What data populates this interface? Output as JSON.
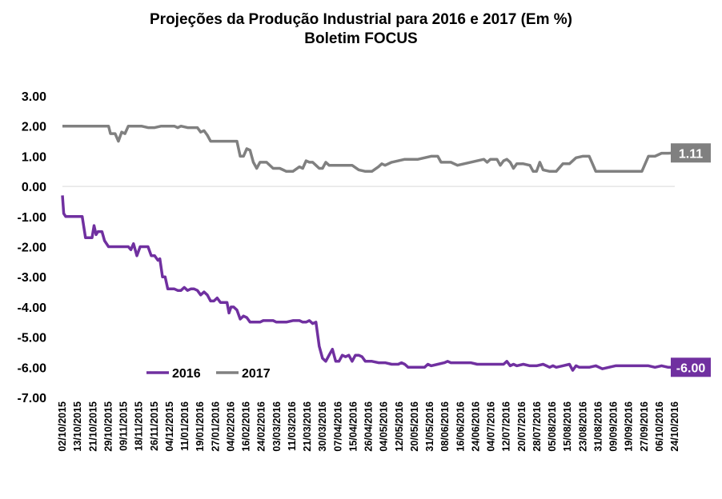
{
  "chart_data": {
    "type": "line",
    "title": "Projeções da Produção Industrial para 2016 e 2017 (Em %)",
    "subtitle": "Boletim FOCUS",
    "ylim": [
      -7,
      3
    ],
    "yticks": [
      "3.00",
      "2.00",
      "1.00",
      "0.00",
      "-1.00",
      "-2.00",
      "-3.00",
      "-4.00",
      "-5.00",
      "-6.00",
      "-7.00"
    ],
    "x_tick_labels": [
      "02/10/2015",
      "13/10/2015",
      "21/10/2015",
      "29/10/2015",
      "09/11/2015",
      "18/11/2015",
      "26/11/2015",
      "04/12/2015",
      "11/01/2016",
      "19/01/2016",
      "27/01/2016",
      "04/02/2016",
      "16/02/2016",
      "24/02/2016",
      "03/03/2016",
      "11/03/2016",
      "21/03/2016",
      "30/03/2016",
      "07/04/2016",
      "15/04/2016",
      "26/04/2016",
      "04/05/2016",
      "12/05/2016",
      "20/05/2016",
      "31/05/2016",
      "08/06/2016",
      "16/06/2016",
      "24/06/2016",
      "04/07/2016",
      "12/07/2016",
      "20/07/2016",
      "28/07/2016",
      "05/08/2016",
      "15/08/2016",
      "23/08/2016",
      "31/08/2016",
      "09/09/2016",
      "19/09/2016",
      "27/09/2016",
      "06/10/2016",
      "24/10/2016"
    ],
    "legend_position": "bottom-left",
    "grid": false,
    "series": [
      {
        "name": "2016",
        "color": "#7030A0",
        "end_label": "-6.00",
        "points": [
          [
            0,
            -0.3
          ],
          [
            0.2,
            -0.9
          ],
          [
            0.5,
            -1.0
          ],
          [
            1,
            -1.0
          ],
          [
            2,
            -1.0
          ],
          [
            3,
            -1.0
          ],
          [
            3.5,
            -1.7
          ],
          [
            4.5,
            -1.7
          ],
          [
            4.8,
            -1.3
          ],
          [
            5.1,
            -1.6
          ],
          [
            5.4,
            -1.5
          ],
          [
            6,
            -1.5
          ],
          [
            6.4,
            -1.8
          ],
          [
            7,
            -2.0
          ],
          [
            8,
            -2.0
          ],
          [
            9,
            -2.0
          ],
          [
            10,
            -2.0
          ],
          [
            10.4,
            -2.1
          ],
          [
            10.8,
            -1.9
          ],
          [
            11.3,
            -2.3
          ],
          [
            11.8,
            -2.0
          ],
          [
            12.5,
            -2.0
          ],
          [
            13,
            -2.0
          ],
          [
            13.5,
            -2.3
          ],
          [
            14,
            -2.3
          ],
          [
            14.5,
            -2.45
          ],
          [
            14.8,
            -2.4
          ],
          [
            15.2,
            -3.0
          ],
          [
            15.6,
            -3.0
          ],
          [
            16,
            -3.4
          ],
          [
            17,
            -3.4
          ],
          [
            17.5,
            -3.45
          ],
          [
            18,
            -3.45
          ],
          [
            18.5,
            -3.35
          ],
          [
            19,
            -3.45
          ],
          [
            19.5,
            -3.4
          ],
          [
            20,
            -3.4
          ],
          [
            20.5,
            -3.45
          ],
          [
            21,
            -3.6
          ],
          [
            21.5,
            -3.5
          ],
          [
            22,
            -3.6
          ],
          [
            22.5,
            -3.8
          ],
          [
            23,
            -3.8
          ],
          [
            23.5,
            -3.7
          ],
          [
            24,
            -3.85
          ],
          [
            25,
            -3.85
          ],
          [
            25.3,
            -4.2
          ],
          [
            25.6,
            -4.0
          ],
          [
            26,
            -4.0
          ],
          [
            26.5,
            -4.1
          ],
          [
            27,
            -4.4
          ],
          [
            27.5,
            -4.3
          ],
          [
            28,
            -4.35
          ],
          [
            28.5,
            -4.5
          ],
          [
            29,
            -4.5
          ],
          [
            29.5,
            -4.5
          ],
          [
            30,
            -4.5
          ],
          [
            30.5,
            -4.45
          ],
          [
            31,
            -4.45
          ],
          [
            32,
            -4.45
          ],
          [
            32.5,
            -4.5
          ],
          [
            33,
            -4.5
          ],
          [
            34,
            -4.5
          ],
          [
            35,
            -4.45
          ],
          [
            36,
            -4.45
          ],
          [
            36.5,
            -4.5
          ],
          [
            37,
            -4.5
          ],
          [
            37.5,
            -4.45
          ],
          [
            38,
            -4.55
          ],
          [
            38.5,
            -4.5
          ],
          [
            39,
            -5.3
          ],
          [
            39.5,
            -5.7
          ],
          [
            40,
            -5.8
          ],
          [
            40.5,
            -5.6
          ],
          [
            41,
            -5.4
          ],
          [
            41.5,
            -5.8
          ],
          [
            42,
            -5.8
          ],
          [
            42.5,
            -5.6
          ],
          [
            43,
            -5.65
          ],
          [
            43.5,
            -5.6
          ],
          [
            44,
            -5.8
          ],
          [
            44.5,
            -5.6
          ],
          [
            45,
            -5.6
          ],
          [
            45.5,
            -5.65
          ],
          [
            46,
            -5.8
          ],
          [
            47,
            -5.8
          ],
          [
            48,
            -5.85
          ],
          [
            49,
            -5.85
          ],
          [
            50,
            -5.9
          ],
          [
            51,
            -5.9
          ],
          [
            51.5,
            -5.85
          ],
          [
            52,
            -5.9
          ],
          [
            52.5,
            -6.0
          ],
          [
            53,
            -6.0
          ],
          [
            54,
            -6.0
          ],
          [
            55,
            -6.0
          ],
          [
            55.5,
            -5.9
          ],
          [
            56,
            -5.95
          ],
          [
            57,
            -5.9
          ],
          [
            58,
            -5.85
          ],
          [
            58.5,
            -5.8
          ],
          [
            59,
            -5.85
          ],
          [
            60,
            -5.85
          ],
          [
            61,
            -5.85
          ],
          [
            62,
            -5.85
          ],
          [
            63,
            -5.9
          ],
          [
            64,
            -5.9
          ],
          [
            65,
            -5.9
          ],
          [
            66,
            -5.9
          ],
          [
            67,
            -5.9
          ],
          [
            67.5,
            -5.8
          ],
          [
            68,
            -5.95
          ],
          [
            68.5,
            -5.9
          ],
          [
            69,
            -5.95
          ],
          [
            70,
            -5.9
          ],
          [
            71,
            -5.95
          ],
          [
            72,
            -5.95
          ],
          [
            73,
            -5.9
          ],
          [
            73.5,
            -5.95
          ],
          [
            74,
            -6.0
          ],
          [
            74.5,
            -5.95
          ],
          [
            75,
            -6.0
          ],
          [
            76,
            -5.95
          ],
          [
            77,
            -5.9
          ],
          [
            77.5,
            -6.1
          ],
          [
            78,
            -5.95
          ],
          [
            78.5,
            -6.0
          ],
          [
            79,
            -6.0
          ],
          [
            80,
            -6.0
          ],
          [
            81,
            -5.95
          ],
          [
            82,
            -6.05
          ],
          [
            83,
            -6.0
          ],
          [
            84,
            -5.95
          ],
          [
            85,
            -5.95
          ],
          [
            86,
            -5.95
          ],
          [
            87,
            -5.95
          ],
          [
            88,
            -5.95
          ],
          [
            89,
            -5.95
          ],
          [
            90,
            -6.0
          ],
          [
            91,
            -5.95
          ],
          [
            92,
            -6.0
          ],
          [
            93,
            -6.0
          ]
        ]
      },
      {
        "name": "2017",
        "color": "#808080",
        "end_label": "1.11",
        "points": [
          [
            0,
            2.0
          ],
          [
            1,
            2.0
          ],
          [
            2,
            2.0
          ],
          [
            3,
            2.0
          ],
          [
            4,
            2.0
          ],
          [
            5,
            2.0
          ],
          [
            6,
            2.0
          ],
          [
            7,
            2.0
          ],
          [
            7.3,
            1.75
          ],
          [
            8,
            1.75
          ],
          [
            8.5,
            1.5
          ],
          [
            9,
            1.8
          ],
          [
            9.5,
            1.75
          ],
          [
            10,
            2.0
          ],
          [
            11,
            2.0
          ],
          [
            12,
            2.0
          ],
          [
            13,
            1.95
          ],
          [
            14,
            1.95
          ],
          [
            15,
            2.0
          ],
          [
            16,
            2.0
          ],
          [
            17,
            2.0
          ],
          [
            17.5,
            1.95
          ],
          [
            18,
            2.0
          ],
          [
            19,
            1.95
          ],
          [
            20,
            1.95
          ],
          [
            20.5,
            1.95
          ],
          [
            21,
            1.8
          ],
          [
            21.5,
            1.85
          ],
          [
            22,
            1.7
          ],
          [
            22.5,
            1.5
          ],
          [
            23,
            1.5
          ],
          [
            24,
            1.5
          ],
          [
            25,
            1.5
          ],
          [
            26,
            1.5
          ],
          [
            26.5,
            1.5
          ],
          [
            27,
            1.0
          ],
          [
            27.5,
            1.0
          ],
          [
            28,
            1.25
          ],
          [
            28.5,
            1.2
          ],
          [
            29,
            0.8
          ],
          [
            29.5,
            0.6
          ],
          [
            30,
            0.8
          ],
          [
            31,
            0.8
          ],
          [
            32,
            0.6
          ],
          [
            33,
            0.6
          ],
          [
            33.5,
            0.55
          ],
          [
            34,
            0.5
          ],
          [
            35,
            0.5
          ],
          [
            36,
            0.65
          ],
          [
            36.5,
            0.6
          ],
          [
            37,
            0.85
          ],
          [
            37.5,
            0.8
          ],
          [
            38,
            0.8
          ],
          [
            38.5,
            0.7
          ],
          [
            39,
            0.6
          ],
          [
            39.5,
            0.6
          ],
          [
            40,
            0.8
          ],
          [
            40.5,
            0.7
          ],
          [
            41,
            0.7
          ],
          [
            42,
            0.7
          ],
          [
            43,
            0.7
          ],
          [
            44,
            0.7
          ],
          [
            45,
            0.55
          ],
          [
            46,
            0.5
          ],
          [
            47,
            0.5
          ],
          [
            48,
            0.65
          ],
          [
            48.5,
            0.75
          ],
          [
            49,
            0.7
          ],
          [
            50,
            0.8
          ],
          [
            51,
            0.85
          ],
          [
            52,
            0.9
          ],
          [
            53,
            0.9
          ],
          [
            54,
            0.9
          ],
          [
            55,
            0.95
          ],
          [
            56,
            1.0
          ],
          [
            57,
            1.0
          ],
          [
            57.5,
            0.8
          ],
          [
            58,
            0.8
          ],
          [
            59,
            0.8
          ],
          [
            60,
            0.7
          ],
          [
            61,
            0.75
          ],
          [
            62,
            0.8
          ],
          [
            63,
            0.85
          ],
          [
            64,
            0.9
          ],
          [
            64.5,
            0.8
          ],
          [
            65,
            0.9
          ],
          [
            66,
            0.9
          ],
          [
            66.5,
            0.7
          ],
          [
            67,
            0.85
          ],
          [
            67.5,
            0.9
          ],
          [
            68,
            0.8
          ],
          [
            68.5,
            0.6
          ],
          [
            69,
            0.75
          ],
          [
            70,
            0.75
          ],
          [
            71,
            0.7
          ],
          [
            71.5,
            0.5
          ],
          [
            72,
            0.5
          ],
          [
            72.5,
            0.8
          ],
          [
            73,
            0.55
          ],
          [
            74,
            0.5
          ],
          [
            75,
            0.5
          ],
          [
            76,
            0.75
          ],
          [
            77,
            0.75
          ],
          [
            78,
            0.95
          ],
          [
            79,
            1.0
          ],
          [
            80,
            1.0
          ],
          [
            80.5,
            0.75
          ],
          [
            81,
            0.5
          ],
          [
            82,
            0.5
          ],
          [
            83,
            0.5
          ],
          [
            84,
            0.5
          ],
          [
            85,
            0.5
          ],
          [
            86,
            0.5
          ],
          [
            87,
            0.5
          ],
          [
            88,
            0.5
          ],
          [
            89,
            1.0
          ],
          [
            90,
            1.0
          ],
          [
            91,
            1.1
          ],
          [
            92,
            1.1
          ],
          [
            93,
            1.11
          ]
        ]
      }
    ]
  }
}
